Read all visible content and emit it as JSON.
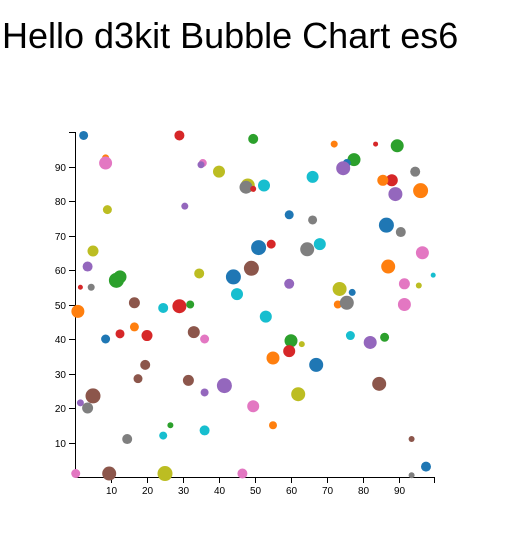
{
  "page": {
    "title": "Hello d3kit Bubble Chart es6"
  },
  "chart_data": {
    "type": "scatter",
    "title": "",
    "xlabel": "",
    "ylabel": "",
    "xlim": [
      0,
      100
    ],
    "ylim": [
      0,
      100
    ],
    "grid": false,
    "x_ticks": [
      10,
      20,
      30,
      40,
      50,
      60,
      70,
      80,
      90
    ],
    "y_ticks": [
      10,
      20,
      30,
      40,
      50,
      60,
      70,
      80,
      90
    ],
    "points": [
      {
        "x": 2.4,
        "y": 99,
        "r": 4.5,
        "color": "#1f77b4"
      },
      {
        "x": 29,
        "y": 99,
        "r": 5,
        "color": "#d62728"
      },
      {
        "x": 49.5,
        "y": 98,
        "r": 5,
        "color": "#2ca02c"
      },
      {
        "x": 72,
        "y": 96.5,
        "r": 3.5,
        "color": "#ff7f0e"
      },
      {
        "x": 83.5,
        "y": 96.5,
        "r": 2.5,
        "color": "#d62728"
      },
      {
        "x": 89.5,
        "y": 96,
        "r": 6.5,
        "color": "#2ca02c"
      },
      {
        "x": 8.5,
        "y": 92.5,
        "r": 3.5,
        "color": "#ff7f0e"
      },
      {
        "x": 8.5,
        "y": 91,
        "r": 6.5,
        "color": "#e377c2"
      },
      {
        "x": 35.5,
        "y": 91,
        "r": 4,
        "color": "#e377c2"
      },
      {
        "x": 35,
        "y": 90.5,
        "r": 3.5,
        "color": "#9467bd"
      },
      {
        "x": 40,
        "y": 88.5,
        "r": 6,
        "color": "#bcbd22"
      },
      {
        "x": 77.5,
        "y": 92,
        "r": 6.5,
        "color": "#2ca02c"
      },
      {
        "x": 75.5,
        "y": 91,
        "r": 4,
        "color": "#1f77b4"
      },
      {
        "x": 74.5,
        "y": 89.5,
        "r": 7,
        "color": "#9467bd"
      },
      {
        "x": 94.5,
        "y": 88.5,
        "r": 5,
        "color": "#7f7f7f"
      },
      {
        "x": 66,
        "y": 87,
        "r": 6,
        "color": "#17becf"
      },
      {
        "x": 48,
        "y": 84.5,
        "r": 7,
        "color": "#bcbd22"
      },
      {
        "x": 47.5,
        "y": 84,
        "r": 6.5,
        "color": "#7f7f7f"
      },
      {
        "x": 49.5,
        "y": 83.5,
        "r": 3,
        "color": "#d62728"
      },
      {
        "x": 52.5,
        "y": 84.5,
        "r": 6,
        "color": "#17becf"
      },
      {
        "x": 88,
        "y": 86,
        "r": 6,
        "color": "#d62728"
      },
      {
        "x": 85.5,
        "y": 86,
        "r": 5.5,
        "color": "#ff7f0e"
      },
      {
        "x": 96,
        "y": 83,
        "r": 7.5,
        "color": "#ff7f0e"
      },
      {
        "x": 89,
        "y": 82,
        "r": 7,
        "color": "#9467bd"
      },
      {
        "x": 9,
        "y": 77.5,
        "r": 4.5,
        "color": "#bcbd22"
      },
      {
        "x": 30.5,
        "y": 78.5,
        "r": 3.5,
        "color": "#9467bd"
      },
      {
        "x": 59.5,
        "y": 76,
        "r": 4.5,
        "color": "#1f77b4"
      },
      {
        "x": 66,
        "y": 74.5,
        "r": 4.5,
        "color": "#7f7f7f"
      },
      {
        "x": 86.5,
        "y": 73,
        "r": 7.5,
        "color": "#1f77b4"
      },
      {
        "x": 90.5,
        "y": 71,
        "r": 5,
        "color": "#7f7f7f"
      },
      {
        "x": 51,
        "y": 66.5,
        "r": 7.5,
        "color": "#1f77b4"
      },
      {
        "x": 54.5,
        "y": 67.5,
        "r": 4.5,
        "color": "#d62728"
      },
      {
        "x": 68,
        "y": 67.5,
        "r": 6,
        "color": "#17becf"
      },
      {
        "x": 64.5,
        "y": 66,
        "r": 7,
        "color": "#7f7f7f"
      },
      {
        "x": 5,
        "y": 65.5,
        "r": 5.5,
        "color": "#bcbd22"
      },
      {
        "x": 96.5,
        "y": 65,
        "r": 6.5,
        "color": "#e377c2"
      },
      {
        "x": 3.5,
        "y": 61,
        "r": 5,
        "color": "#9467bd"
      },
      {
        "x": 49,
        "y": 60.5,
        "r": 7.5,
        "color": "#8c564b"
      },
      {
        "x": 87,
        "y": 61,
        "r": 7,
        "color": "#ff7f0e"
      },
      {
        "x": 34.5,
        "y": 59,
        "r": 5,
        "color": "#bcbd22"
      },
      {
        "x": 44,
        "y": 58,
        "r": 7.5,
        "color": "#1f77b4"
      },
      {
        "x": 99.5,
        "y": 58.5,
        "r": 2.5,
        "color": "#17becf"
      },
      {
        "x": 11.5,
        "y": 57,
        "r": 7.5,
        "color": "#2ca02c"
      },
      {
        "x": 12.5,
        "y": 58,
        "r": 6.5,
        "color": "#2ca02c"
      },
      {
        "x": 1.5,
        "y": 55,
        "r": 2.5,
        "color": "#d62728"
      },
      {
        "x": 4.5,
        "y": 55,
        "r": 3.5,
        "color": "#7f7f7f"
      },
      {
        "x": 59.5,
        "y": 56,
        "r": 5,
        "color": "#9467bd"
      },
      {
        "x": 91.5,
        "y": 56,
        "r": 5.5,
        "color": "#e377c2"
      },
      {
        "x": 95.5,
        "y": 55.5,
        "r": 3,
        "color": "#bcbd22"
      },
      {
        "x": 73.5,
        "y": 54.5,
        "r": 7,
        "color": "#bcbd22"
      },
      {
        "x": 77,
        "y": 53.5,
        "r": 3.5,
        "color": "#1f77b4"
      },
      {
        "x": 45,
        "y": 53,
        "r": 6,
        "color": "#17becf"
      },
      {
        "x": 16.5,
        "y": 50.5,
        "r": 5.5,
        "color": "#8c564b"
      },
      {
        "x": 24.5,
        "y": 49,
        "r": 5,
        "color": "#17becf"
      },
      {
        "x": 29,
        "y": 49.5,
        "r": 7,
        "color": "#d62728"
      },
      {
        "x": 32,
        "y": 50,
        "r": 4,
        "color": "#2ca02c"
      },
      {
        "x": 73,
        "y": 50,
        "r": 4,
        "color": "#ff7f0e"
      },
      {
        "x": 75.5,
        "y": 50.5,
        "r": 7,
        "color": "#7f7f7f"
      },
      {
        "x": 91.5,
        "y": 50,
        "r": 6.5,
        "color": "#e377c2"
      },
      {
        "x": 0.8,
        "y": 48,
        "r": 6.5,
        "color": "#ff7f0e"
      },
      {
        "x": 53,
        "y": 46.5,
        "r": 6,
        "color": "#17becf"
      },
      {
        "x": 16.5,
        "y": 43.5,
        "r": 4.5,
        "color": "#ff7f0e"
      },
      {
        "x": 12.5,
        "y": 41.5,
        "r": 4.5,
        "color": "#d62728"
      },
      {
        "x": 33,
        "y": 42,
        "r": 6,
        "color": "#8c564b"
      },
      {
        "x": 20,
        "y": 41,
        "r": 5.5,
        "color": "#d62728"
      },
      {
        "x": 36,
        "y": 40,
        "r": 4.5,
        "color": "#e377c2"
      },
      {
        "x": 8.5,
        "y": 40,
        "r": 4.5,
        "color": "#1f77b4"
      },
      {
        "x": 60,
        "y": 39.5,
        "r": 6.5,
        "color": "#2ca02c"
      },
      {
        "x": 63,
        "y": 38.5,
        "r": 3,
        "color": "#bcbd22"
      },
      {
        "x": 76.5,
        "y": 41,
        "r": 4.5,
        "color": "#17becf"
      },
      {
        "x": 82,
        "y": 39,
        "r": 6.5,
        "color": "#9467bd"
      },
      {
        "x": 86,
        "y": 40.5,
        "r": 4.5,
        "color": "#2ca02c"
      },
      {
        "x": 59.5,
        "y": 36.5,
        "r": 6,
        "color": "#d62728"
      },
      {
        "x": 55,
        "y": 34.5,
        "r": 6.5,
        "color": "#ff7f0e"
      },
      {
        "x": 67,
        "y": 32.5,
        "r": 7,
        "color": "#1f77b4"
      },
      {
        "x": 19.5,
        "y": 32.5,
        "r": 5,
        "color": "#8c564b"
      },
      {
        "x": 17.5,
        "y": 28.5,
        "r": 4.5,
        "color": "#8c564b"
      },
      {
        "x": 31.5,
        "y": 28,
        "r": 5.5,
        "color": "#8c564b"
      },
      {
        "x": 41.5,
        "y": 26.5,
        "r": 7.5,
        "color": "#9467bd"
      },
      {
        "x": 84.5,
        "y": 27,
        "r": 7,
        "color": "#8c564b"
      },
      {
        "x": 36,
        "y": 24.5,
        "r": 4,
        "color": "#9467bd"
      },
      {
        "x": 62,
        "y": 24,
        "r": 7,
        "color": "#bcbd22"
      },
      {
        "x": 5,
        "y": 23.5,
        "r": 7.5,
        "color": "#8c564b"
      },
      {
        "x": 1.5,
        "y": 21.5,
        "r": 3.5,
        "color": "#9467bd"
      },
      {
        "x": 3.5,
        "y": 20,
        "r": 5.5,
        "color": "#7f7f7f"
      },
      {
        "x": 49.5,
        "y": 20.5,
        "r": 6,
        "color": "#e377c2"
      },
      {
        "x": 55,
        "y": 15,
        "r": 4,
        "color": "#ff7f0e"
      },
      {
        "x": 26.5,
        "y": 15,
        "r": 3,
        "color": "#2ca02c"
      },
      {
        "x": 36,
        "y": 13.5,
        "r": 5,
        "color": "#17becf"
      },
      {
        "x": 24.5,
        "y": 12,
        "r": 4,
        "color": "#17becf"
      },
      {
        "x": 14.5,
        "y": 11,
        "r": 5,
        "color": "#7f7f7f"
      },
      {
        "x": 93.5,
        "y": 11,
        "r": 3,
        "color": "#8c564b"
      },
      {
        "x": 97.5,
        "y": 3,
        "r": 5,
        "color": "#1f77b4"
      },
      {
        "x": 0.2,
        "y": 1,
        "r": 4.5,
        "color": "#e377c2"
      },
      {
        "x": 9.5,
        "y": 1,
        "r": 7,
        "color": "#8c564b"
      },
      {
        "x": 25,
        "y": 1,
        "r": 7.5,
        "color": "#bcbd22"
      },
      {
        "x": 46.5,
        "y": 1,
        "r": 5,
        "color": "#e377c2"
      },
      {
        "x": 93.5,
        "y": 0.5,
        "r": 3,
        "color": "#7f7f7f"
      }
    ]
  }
}
